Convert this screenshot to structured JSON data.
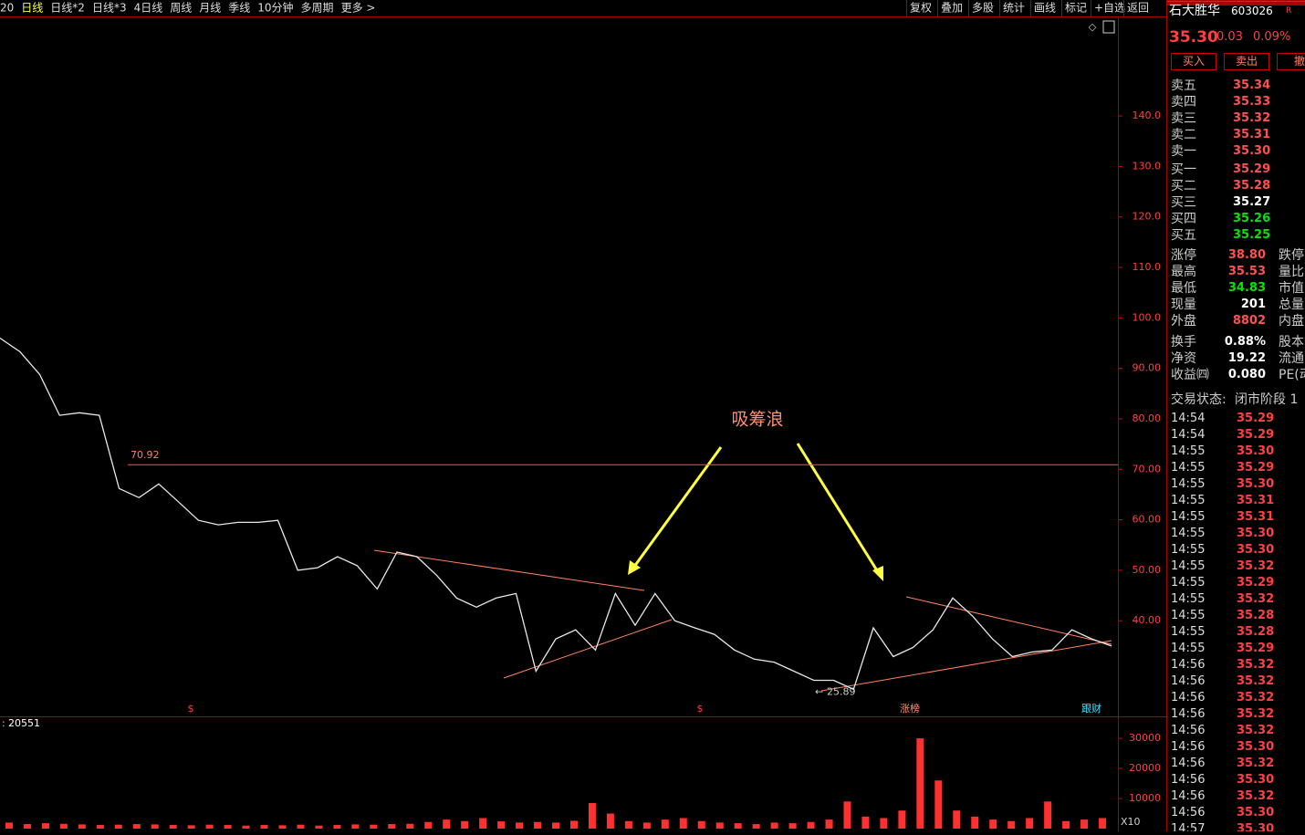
{
  "toolbar": {
    "tabs": [
      "20",
      "日线",
      "日线*2",
      "日线*3",
      "4日线",
      "周线",
      "月线",
      "季线",
      "10分钟",
      "多周期",
      "更多 >"
    ],
    "buttons": [
      "复权",
      "叠加",
      "多股",
      "统计",
      "画线",
      "标记",
      "+自选",
      "返回"
    ]
  },
  "quote": {
    "name": "石大胜华",
    "code": "603026",
    "tag": "R",
    "price": "35.30",
    "change": "0.03",
    "pct": "0.09%",
    "actions": [
      "买入",
      "卖出",
      "撤"
    ]
  },
  "order_book": [
    {
      "label": "卖五",
      "price": "35.34",
      "color": "#ff5050"
    },
    {
      "label": "卖四",
      "price": "35.33",
      "color": "#ff5050"
    },
    {
      "label": "卖三",
      "price": "35.32",
      "color": "#ff5050"
    },
    {
      "label": "卖二",
      "price": "35.31",
      "color": "#ff5050"
    },
    {
      "label": "卖一",
      "price": "35.30",
      "color": "#ff5050"
    },
    {
      "label": "买一",
      "price": "35.29",
      "color": "#ff5050"
    },
    {
      "label": "买二",
      "price": "35.28",
      "color": "#ff5050"
    },
    {
      "label": "买三",
      "price": "35.27",
      "color": "#ffffff"
    },
    {
      "label": "买四",
      "price": "35.26",
      "color": "#00e600"
    },
    {
      "label": "买五",
      "price": "35.25",
      "color": "#00e600"
    }
  ],
  "stats": [
    {
      "label": "涨停",
      "value": "38.80",
      "label2": "跌停",
      "color": "#ff5050"
    },
    {
      "label": "最高",
      "value": "35.53",
      "label2": "量比",
      "color": "#ff5050"
    },
    {
      "label": "最低",
      "value": "34.83",
      "label2": "市值",
      "color": "#00e600"
    },
    {
      "label": "现量",
      "value": "201",
      "label2": "总量",
      "color": "#ffffff"
    },
    {
      "label": "外盘",
      "value": "8802",
      "label2": "内盘",
      "color": "#ff5050"
    },
    {
      "label": "换手",
      "value": "0.88%",
      "label2": "股本",
      "color": "#ffffff"
    },
    {
      "label": "净资",
      "value": "19.22",
      "label2": "流通",
      "color": "#ffffff"
    },
    {
      "label": "收益㈣",
      "value": "0.080",
      "label2": "PE(动",
      "color": "#ffffff"
    }
  ],
  "status": {
    "label": "交易状态:",
    "value": "闭市阶段 1"
  },
  "trades": [
    [
      "14:54",
      "35.29"
    ],
    [
      "14:54",
      "35.29"
    ],
    [
      "14:55",
      "35.30"
    ],
    [
      "14:55",
      "35.29"
    ],
    [
      "14:55",
      "35.30"
    ],
    [
      "14:55",
      "35.31"
    ],
    [
      "14:55",
      "35.31"
    ],
    [
      "14:55",
      "35.30"
    ],
    [
      "14:55",
      "35.30"
    ],
    [
      "14:55",
      "35.32"
    ],
    [
      "14:55",
      "35.29"
    ],
    [
      "14:55",
      "35.32"
    ],
    [
      "14:55",
      "35.28"
    ],
    [
      "14:55",
      "35.28"
    ],
    [
      "14:55",
      "35.29"
    ],
    [
      "14:56",
      "35.32"
    ],
    [
      "14:56",
      "35.32"
    ],
    [
      "14:56",
      "35.32"
    ],
    [
      "14:56",
      "35.32"
    ],
    [
      "14:56",
      "35.32"
    ],
    [
      "14:56",
      "35.30"
    ],
    [
      "14:56",
      "35.32"
    ],
    [
      "14:56",
      "35.30"
    ],
    [
      "14:56",
      "35.32"
    ],
    [
      "14:56",
      "35.30"
    ],
    [
      "14:57",
      "35.30"
    ]
  ],
  "chart_data": [
    {
      "type": "line",
      "color": "#e8e8e8",
      "values": [
        96,
        93.3,
        88.8,
        80.7,
        81.2,
        80.7,
        66.2,
        64.4,
        67.1,
        63.5,
        59.9,
        59,
        59.5,
        59.5,
        59.9,
        50,
        50.5,
        52.7,
        50.9,
        46.3,
        53.6,
        52.7,
        49,
        44.5,
        42.7,
        44.5,
        45.4,
        30,
        36.4,
        38.2,
        34.2,
        45.4,
        39.1,
        45.4,
        40,
        38.6,
        37.3,
        34.2,
        32.4,
        31.8,
        30,
        28.2,
        28.2,
        26.4,
        38.6,
        32.9,
        34.7,
        38.2,
        44.5,
        40.9,
        36.4,
        32.9,
        33.8,
        34.2,
        38.2,
        36.4,
        35
      ],
      "ylim": [
        21.6,
        159
      ],
      "yticks": [
        {
          "value": 40,
          "label": "40.00"
        },
        {
          "value": 50,
          "label": "50.00"
        },
        {
          "value": 60,
          "label": "60.00"
        },
        {
          "value": 70,
          "label": "70.00"
        },
        {
          "value": 80,
          "label": "80.00"
        },
        {
          "value": 90,
          "label": "90.00"
        },
        {
          "value": 100,
          "label": "100.0"
        },
        {
          "value": 110,
          "label": "110.0"
        },
        {
          "value": 120,
          "label": "120.0"
        },
        {
          "value": 130,
          "label": "130.0"
        },
        {
          "value": 140,
          "label": "140.0"
        }
      ],
      "reference_line": {
        "value": 70.92,
        "label": "70.92"
      },
      "low": {
        "value": 25.89,
        "label": "25.89"
      },
      "annotation": "吸筹浪",
      "markers": [
        "$",
        "$",
        "涨榜",
        "跟财"
      ]
    },
    {
      "type": "bar",
      "color": "#ff3030",
      "label": "20551",
      "values": [
        2000,
        1500,
        1800,
        1600,
        1400,
        1200,
        1300,
        1500,
        1400,
        1200,
        1100,
        1300,
        1200,
        1000,
        1200,
        1100,
        1300,
        1000,
        1200,
        1400,
        1300,
        1500,
        1600,
        2200,
        3000,
        2500,
        3500,
        2400,
        2000,
        2200,
        2000,
        2600,
        8500,
        5000,
        2500,
        2000,
        3000,
        3500,
        2500,
        2000,
        1800,
        1500,
        2000,
        1800,
        2200,
        3000,
        9000,
        4000,
        3500,
        6000,
        30000,
        16000,
        6000,
        4000,
        3000,
        2500,
        3500,
        9000,
        2500,
        3000,
        3500
      ],
      "ylim": [
        0,
        36700
      ],
      "yticks": [
        10000,
        20000,
        30000
      ],
      "unit": "X10"
    }
  ]
}
